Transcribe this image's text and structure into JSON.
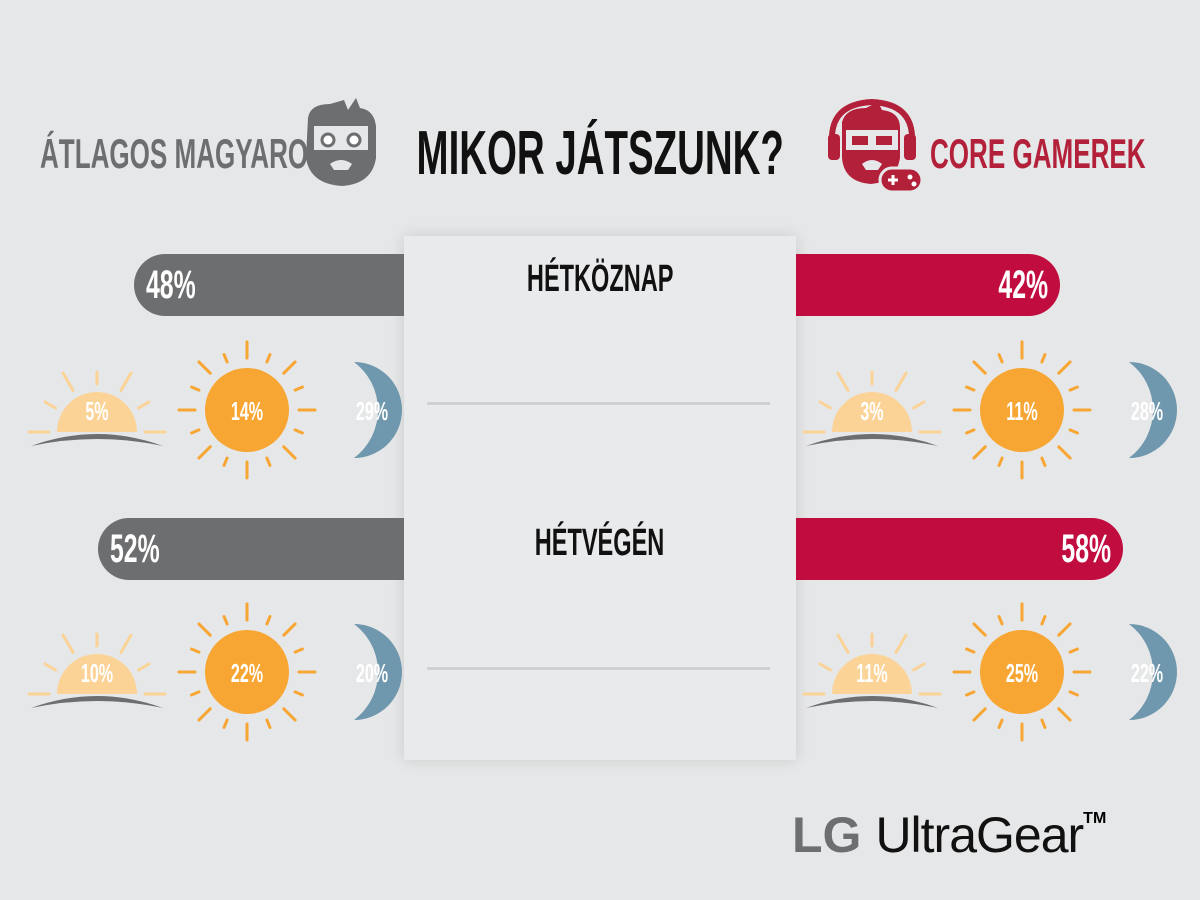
{
  "header": {
    "title": "MIKOR JÁTSZUNK?",
    "left_group": "ÁTLAGOS MAGYAROK",
    "right_group": "CORE GAMEREK",
    "left_icon": "bearded-man-face-icon",
    "right_icon": "gamer-headset-face-icon"
  },
  "colors": {
    "grey": "#6d6e70",
    "red": "#c10c3f",
    "morning": "#fbd397",
    "day": "#f7a634",
    "night": "#6f97ad"
  },
  "chart_data": {
    "type": "bar",
    "title": "MIKOR JÁTSZUNK?",
    "categories": [
      "HÉTKÖZNAP",
      "HÉTVÉGÉN"
    ],
    "series": [
      {
        "name": "ÁTLAGOS MAGYAROK",
        "values": [
          48,
          52
        ],
        "breakdown": [
          {
            "morning": 5,
            "day": 14,
            "night": 29
          },
          {
            "morning": 10,
            "day": 22,
            "night": 20
          }
        ]
      },
      {
        "name": "CORE GAMEREK",
        "values": [
          42,
          58
        ],
        "breakdown": [
          {
            "morning": 3,
            "day": 11,
            "night": 28
          },
          {
            "morning": 11,
            "day": 25,
            "night": 22
          }
        ]
      }
    ],
    "labels": {
      "left": [
        {
          "total": "48%",
          "morning": "5%",
          "day": "14%",
          "night": "29%"
        },
        {
          "total": "52%",
          "morning": "10%",
          "day": "22%",
          "night": "20%"
        }
      ],
      "right": [
        {
          "total": "42%",
          "morning": "3%",
          "day": "11%",
          "night": "28%"
        },
        {
          "total": "58%",
          "morning": "11%",
          "day": "25%",
          "night": "22%"
        }
      ]
    },
    "icons": {
      "morning": "sunrise-icon",
      "day": "sun-icon",
      "night": "moon-icon"
    },
    "unit": "%"
  },
  "logo": {
    "brand": "LG",
    "product": "UltraGear",
    "tm": "TM"
  }
}
